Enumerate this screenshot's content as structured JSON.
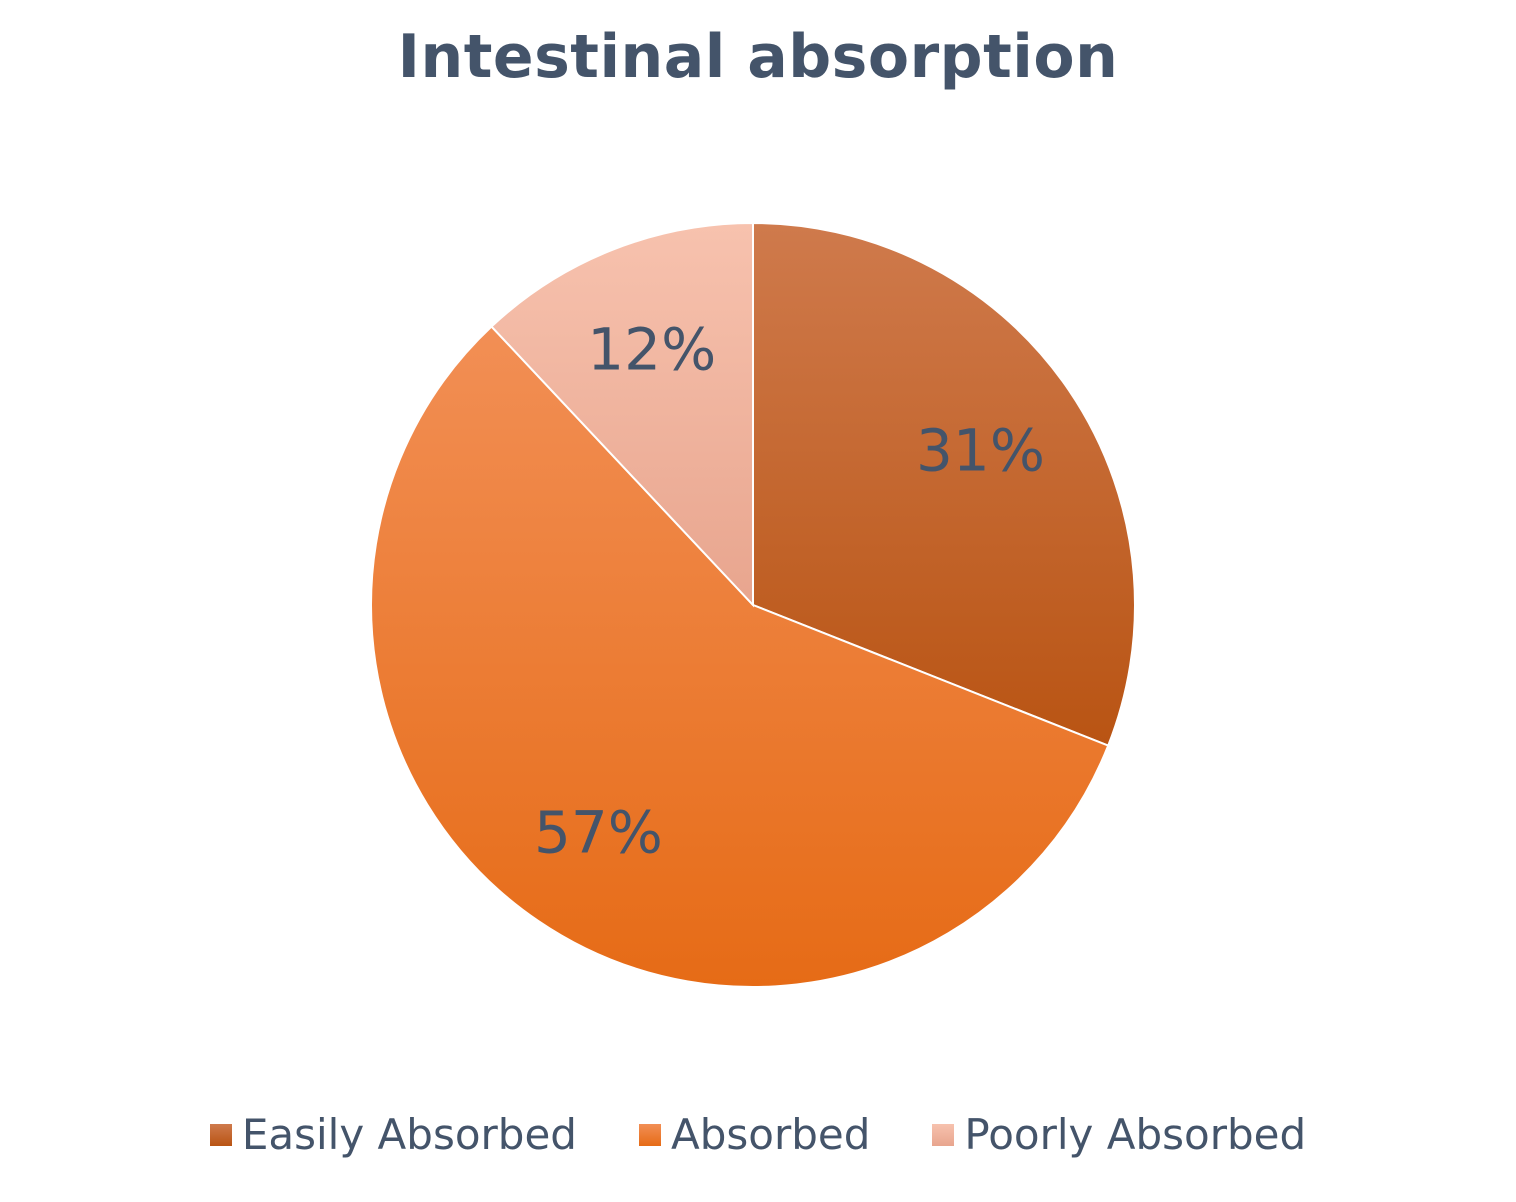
{
  "chart_data": {
    "type": "pie",
    "title": "Intestinal absorption",
    "slices": [
      {
        "name": "Easily Absorbed",
        "value": 31,
        "label": "31%",
        "color": "#c55a11"
      },
      {
        "name": "Absorbed",
        "value": 57,
        "label": "57%",
        "color": "#ed7d31"
      },
      {
        "name": "Poorly Absorbed",
        "value": 12,
        "label": "12%",
        "color": "#f4b183"
      }
    ],
    "start_angle": "12 o'clock",
    "direction": "clockwise",
    "legend_position": "bottom"
  }
}
